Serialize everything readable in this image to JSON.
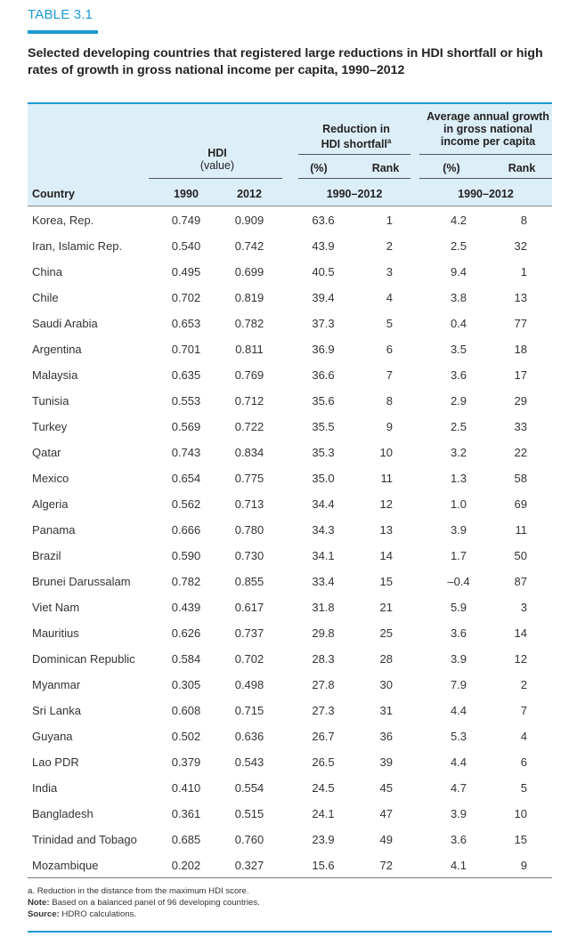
{
  "label": "TABLE 3.1",
  "title": "Selected developing countries that registered large reductions in HDI shortfall or high rates of growth in gross national income per capita, 1990–2012",
  "header": {
    "hdi": "HDI",
    "hdi_sub": "(value)",
    "reduction_line1": "Reduction in",
    "reduction_line2": "HDI shortfall",
    "reduction_sup": "a",
    "gni_line1": "Average annual growth",
    "gni_line2": "in gross national",
    "gni_line3": "income per capita",
    "pct": "(%)",
    "rank": "Rank",
    "country": "Country",
    "y1990": "1990",
    "y2012": "2012",
    "period": "1990–2012"
  },
  "rows": [
    [
      "Korea, Rep.",
      "0.749",
      "0.909",
      "63.6",
      "1",
      "4.2",
      "8"
    ],
    [
      "Iran, Islamic Rep.",
      "0.540",
      "0.742",
      "43.9",
      "2",
      "2.5",
      "32"
    ],
    [
      "China",
      "0.495",
      "0.699",
      "40.5",
      "3",
      "9.4",
      "1"
    ],
    [
      "Chile",
      "0.702",
      "0.819",
      "39.4",
      "4",
      "3.8",
      "13"
    ],
    [
      "Saudi Arabia",
      "0.653",
      "0.782",
      "37.3",
      "5",
      "0.4",
      "77"
    ],
    [
      "Argentina",
      "0.701",
      "0.811",
      "36.9",
      "6",
      "3.5",
      "18"
    ],
    [
      "Malaysia",
      "0.635",
      "0.769",
      "36.6",
      "7",
      "3.6",
      "17"
    ],
    [
      "Tunisia",
      "0.553",
      "0.712",
      "35.6",
      "8",
      "2.9",
      "29"
    ],
    [
      "Turkey",
      "0.569",
      "0.722",
      "35.5",
      "9",
      "2.5",
      "33"
    ],
    [
      "Qatar",
      "0.743",
      "0.834",
      "35.3",
      "10",
      "3.2",
      "22"
    ],
    [
      "Mexico",
      "0.654",
      "0.775",
      "35.0",
      "11",
      "1.3",
      "58"
    ],
    [
      "Algeria",
      "0.562",
      "0.713",
      "34.4",
      "12",
      "1.0",
      "69"
    ],
    [
      "Panama",
      "0.666",
      "0.780",
      "34.3",
      "13",
      "3.9",
      "11"
    ],
    [
      "Brazil",
      "0.590",
      "0.730",
      "34.1",
      "14",
      "1.7",
      "50"
    ],
    [
      "Brunei Darussalam",
      "0.782",
      "0.855",
      "33.4",
      "15",
      "–0.4",
      "87"
    ],
    [
      "Viet Nam",
      "0.439",
      "0.617",
      "31.8",
      "21",
      "5.9",
      "3"
    ],
    [
      "Mauritius",
      "0.626",
      "0.737",
      "29.8",
      "25",
      "3.6",
      "14"
    ],
    [
      "Dominican Republic",
      "0.584",
      "0.702",
      "28.3",
      "28",
      "3.9",
      "12"
    ],
    [
      "Myanmar",
      "0.305",
      "0.498",
      "27.8",
      "30",
      "7.9",
      "2"
    ],
    [
      "Sri Lanka",
      "0.608",
      "0.715",
      "27.3",
      "31",
      "4.4",
      "7"
    ],
    [
      "Guyana",
      "0.502",
      "0.636",
      "26.7",
      "36",
      "5.3",
      "4"
    ],
    [
      "Lao PDR",
      "0.379",
      "0.543",
      "26.5",
      "39",
      "4.4",
      "6"
    ],
    [
      "India",
      "0.410",
      "0.554",
      "24.5",
      "45",
      "4.7",
      "5"
    ],
    [
      "Bangladesh",
      "0.361",
      "0.515",
      "24.1",
      "47",
      "3.9",
      "10"
    ],
    [
      "Trinidad and Tobago",
      "0.685",
      "0.760",
      "23.9",
      "49",
      "3.6",
      "15"
    ],
    [
      "Mozambique",
      "0.202",
      "0.327",
      "15.6",
      "72",
      "4.1",
      "9"
    ]
  ],
  "notes": {
    "a_marker": "a.",
    "a_text": "Reduction in the distance from the maximum HDI score.",
    "note_label": "Note:",
    "note_text": "Based on a balanced panel of 96 developing countries.",
    "source_label": "Source:",
    "source_text": "HDRO calculations."
  },
  "colors": {
    "accent": "#1a9ad6",
    "header_bg": "#dceef8"
  }
}
